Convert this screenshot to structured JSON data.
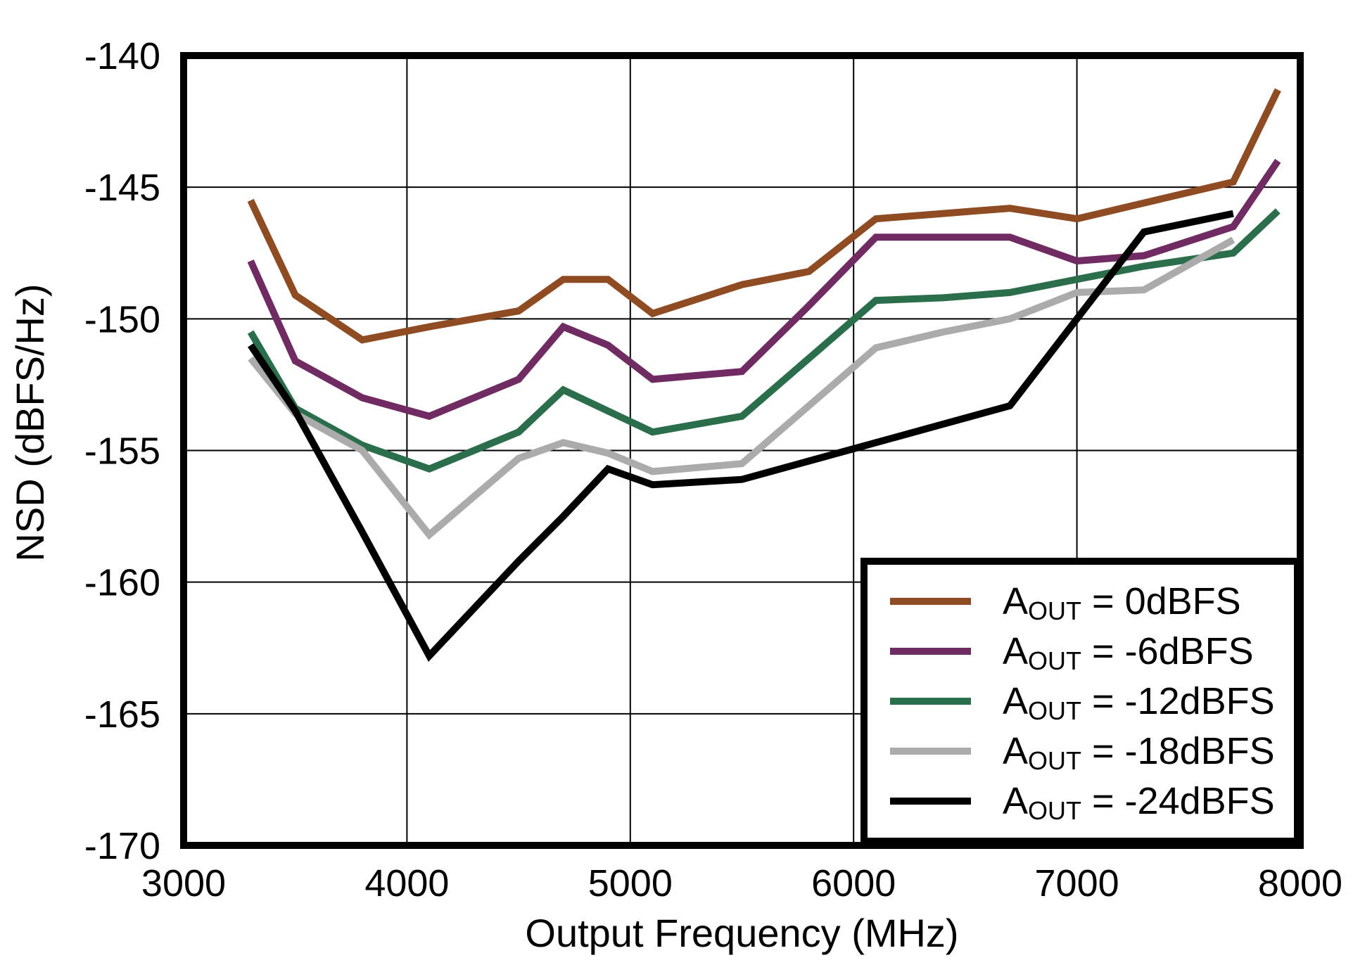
{
  "chart_data": {
    "type": "line",
    "title": "",
    "xlabel": "Output Frequency (MHz)",
    "ylabel": "NSD (dBFS/Hz)",
    "xlim": [
      3000,
      8000
    ],
    "ylim": [
      -170,
      -140
    ],
    "x_ticks": [
      3000,
      4000,
      5000,
      6000,
      7000,
      8000
    ],
    "y_ticks": [
      -140,
      -145,
      -150,
      -155,
      -160,
      -165,
      -170
    ],
    "grid": true,
    "legend_position": "lower right",
    "legend_symbol": "A",
    "legend_symbol_sub": "OUT",
    "legend_equals": " = ",
    "series": [
      {
        "name": "AOUT = 0dBFS",
        "amplitude": "0dBFS",
        "color": "#8F4B21",
        "x": [
          3300,
          3500,
          3800,
          4100,
          4500,
          4700,
          4900,
          5100,
          5500,
          5800,
          6100,
          6400,
          6700,
          7000,
          7300,
          7700,
          7900
        ],
        "y": [
          -145.5,
          -149.1,
          -150.8,
          -150.3,
          -149.7,
          -148.5,
          -148.5,
          -149.8,
          -148.7,
          -148.2,
          -146.2,
          -146.0,
          -145.8,
          -146.2,
          -145.6,
          -144.8,
          -141.3
        ]
      },
      {
        "name": "AOUT = -6dBFS",
        "amplitude": "-6dBFS",
        "color": "#6F2B62",
        "x": [
          3300,
          3500,
          3800,
          4100,
          4500,
          4700,
          4900,
          5100,
          5500,
          5800,
          6100,
          6400,
          6700,
          7000,
          7300,
          7700,
          7900
        ],
        "y": [
          -147.8,
          -151.6,
          -153.0,
          -153.7,
          -152.3,
          -150.3,
          -151.0,
          -152.3,
          -152.0,
          -149.5,
          -146.9,
          -146.9,
          -146.9,
          -147.8,
          -147.6,
          -146.5,
          -144.0
        ]
      },
      {
        "name": "AOUT = -12dBFS",
        "amplitude": "-12dBFS",
        "color": "#2B6E4B",
        "x": [
          3300,
          3500,
          3800,
          4100,
          4500,
          4700,
          4900,
          5100,
          5500,
          5800,
          6100,
          6400,
          6700,
          7000,
          7300,
          7700,
          7900
        ],
        "y": [
          -150.5,
          -153.4,
          -154.8,
          -155.7,
          -154.3,
          -152.7,
          -153.5,
          -154.3,
          -153.7,
          -151.5,
          -149.3,
          -149.2,
          -149.0,
          -148.5,
          -148.0,
          -147.5,
          -145.9
        ]
      },
      {
        "name": "AOUT = -18dBFS",
        "amplitude": "-18dBFS",
        "color": "#ABABAB",
        "x": [
          3300,
          3500,
          3800,
          4100,
          4500,
          4700,
          4900,
          5100,
          5500,
          5800,
          6100,
          6400,
          6700,
          7000,
          7300,
          7700
        ],
        "y": [
          -151.5,
          -153.6,
          -155.0,
          -158.2,
          -155.3,
          -154.7,
          -155.1,
          -155.8,
          -155.5,
          -153.3,
          -151.1,
          -150.5,
          -150.0,
          -149.0,
          -148.9,
          -147.0
        ]
      },
      {
        "name": "AOUT = -24dBFS",
        "amplitude": "-24dBFS",
        "color": "#000000",
        "x": [
          3300,
          3500,
          3800,
          4100,
          4500,
          4700,
          4900,
          5100,
          5500,
          5800,
          6100,
          6400,
          6700,
          7000,
          7300,
          7700
        ],
        "y": [
          -151.0,
          -153.5,
          -158.1,
          -162.8,
          -159.2,
          -157.5,
          -155.7,
          -156.3,
          -156.1,
          -155.4,
          -154.7,
          -154.0,
          -153.3,
          -150.0,
          -146.7,
          -146.0
        ]
      }
    ]
  }
}
